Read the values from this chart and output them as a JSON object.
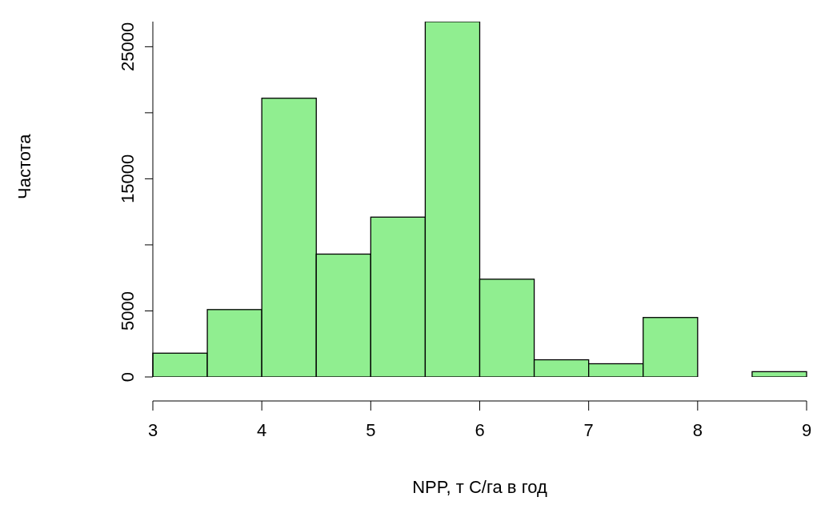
{
  "chart_data": {
    "type": "histogram",
    "xlabel": "NPP, т С/га в год",
    "ylabel": "Частота",
    "bins": [
      3,
      3.5,
      4,
      4.5,
      5,
      5.5,
      6,
      6.5,
      7,
      7.5,
      8,
      8.5,
      9
    ],
    "values": [
      1800,
      5100,
      21100,
      9300,
      12100,
      26900,
      7400,
      1300,
      1000,
      4500,
      0,
      400
    ],
    "color": "#90ee90",
    "xlim": [
      3,
      9
    ],
    "xticks": [
      3,
      4,
      5,
      6,
      7,
      8,
      9
    ],
    "ylim": [
      0,
      26900
    ],
    "yticks": [
      0,
      5000,
      {
        "value": 10000,
        "label": null
      },
      15000,
      {
        "value": 20000,
        "label": null
      },
      25000
    ],
    "grid": false,
    "legend": false
  }
}
